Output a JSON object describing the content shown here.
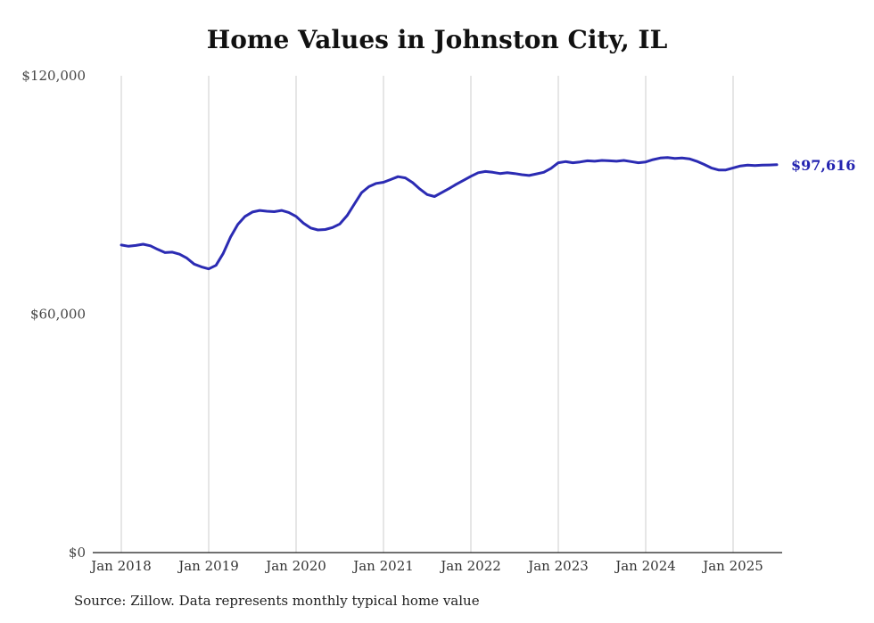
{
  "chart_data": {
    "type": "line",
    "title": "Home Values in Johnston City, IL",
    "xlabel": "",
    "ylabel": "",
    "x_start": "2018-01",
    "x_interval": "monthly",
    "x_ticks": [
      "Jan 2018",
      "Jan 2019",
      "Jan 2020",
      "Jan 2021",
      "Jan 2022",
      "Jan 2023",
      "Jan 2024",
      "Jan 2025"
    ],
    "y_ticks": [
      {
        "label": "$0",
        "value": 0
      },
      {
        "label": "$60,000",
        "value": 60000
      },
      {
        "label": "$120,000",
        "value": 120000
      }
    ],
    "ylim": [
      0,
      120000
    ],
    "grid": "vertical-only",
    "legend": "none",
    "series_name": "Typical home value",
    "values": [
      77400,
      77100,
      77300,
      77600,
      77200,
      76300,
      75500,
      75600,
      75100,
      74100,
      72600,
      71900,
      71400,
      72300,
      75300,
      79400,
      82600,
      84600,
      85700,
      86100,
      85900,
      85800,
      86100,
      85600,
      84600,
      82900,
      81700,
      81200,
      81300,
      81800,
      82700,
      84800,
      87700,
      90600,
      92100,
      92900,
      93200,
      93900,
      94600,
      94300,
      93100,
      91500,
      90100,
      89600,
      90600,
      91600,
      92700,
      93700,
      94700,
      95600,
      95900,
      95700,
      95400,
      95600,
      95400,
      95100,
      94900,
      95300,
      95700,
      96700,
      98100,
      98400,
      98100,
      98300,
      98600,
      98500,
      98700,
      98600,
      98500,
      98700,
      98400,
      98100,
      98300,
      98900,
      99300,
      99400,
      99200,
      99300,
      99100,
      98500,
      97700,
      96800,
      96300,
      96300,
      96800,
      97300,
      97500,
      97400,
      97500,
      97550,
      97616
    ],
    "end_label": "$97,616",
    "source": "Source: Zillow. Data represents monthly typical home value",
    "colors": {
      "line": "#2b2bb3",
      "end_label": "#2424b0",
      "grid": "#cccccc",
      "axis": "#1a1a1a",
      "tick_text": "#444444",
      "title_text": "#111111"
    }
  }
}
